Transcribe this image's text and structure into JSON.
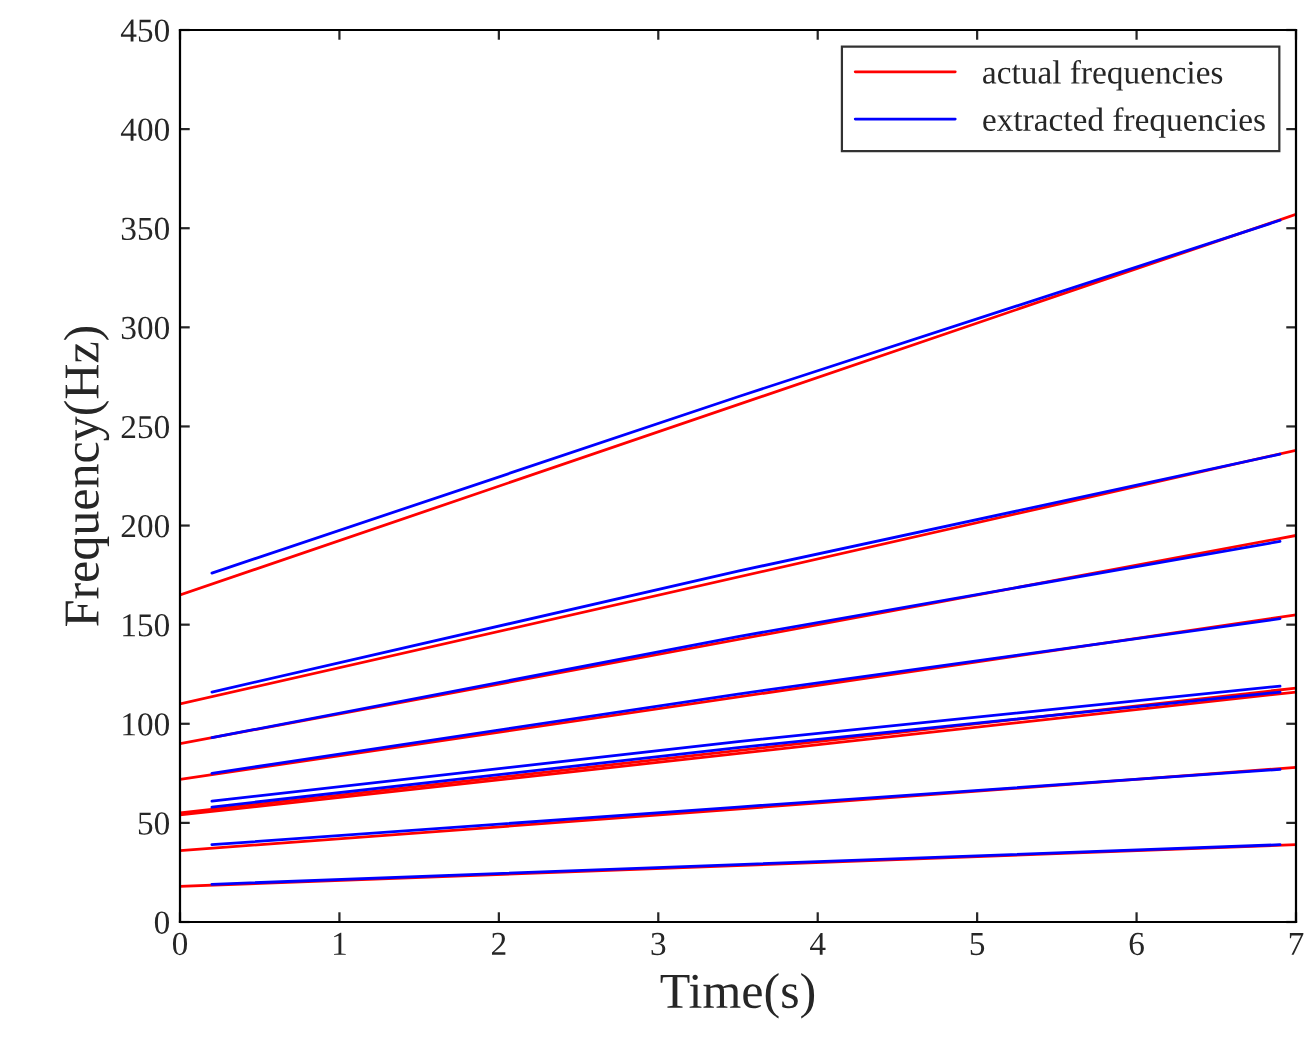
{
  "chart_data": {
    "type": "line",
    "xlabel": "Time(s)",
    "ylabel": "Frequency(Hz)",
    "xlim": [
      0,
      7
    ],
    "ylim": [
      0,
      450
    ],
    "xticks": [
      0,
      1,
      2,
      3,
      4,
      5,
      6,
      7
    ],
    "yticks": [
      0,
      50,
      100,
      150,
      200,
      250,
      300,
      350,
      400,
      450
    ],
    "grid": false,
    "legend": "top right",
    "marker": "none",
    "line_style": "solid",
    "series": [
      {
        "name": "actual frequencies",
        "color": "#ff0000",
        "x": [
          0,
          7
        ],
        "values": [
          165,
          357
        ]
      },
      {
        "color": "#ff0000",
        "x": [
          0,
          7
        ],
        "values": [
          110,
          238
        ]
      },
      {
        "color": "#ff0000",
        "x": [
          0,
          7
        ],
        "values": [
          90,
          195
        ]
      },
      {
        "color": "#ff0000",
        "x": [
          0,
          7
        ],
        "values": [
          72,
          155
        ]
      },
      {
        "color": "#ff0000",
        "x": [
          0,
          7
        ],
        "values": [
          55,
          118
        ]
      },
      {
        "color": "#ff0000",
        "x": [
          0,
          7
        ],
        "values": [
          54,
          116
        ]
      },
      {
        "color": "#ff0000",
        "x": [
          0,
          7
        ],
        "values": [
          36,
          78
        ]
      },
      {
        "color": "#ff0000",
        "x": [
          0,
          7
        ],
        "values": [
          18,
          39
        ]
      },
      {
        "name": "extracted frequencies",
        "color": "#0000ff",
        "x": [
          0.2,
          3.5,
          6.9
        ],
        "values": [
          176,
          265,
          354
        ]
      },
      {
        "color": "#0000ff",
        "x": [
          0.2,
          3.5,
          6.9
        ],
        "values": [
          116,
          177,
          236
        ]
      },
      {
        "color": "#0000ff",
        "x": [
          0.2,
          3.5,
          6.9
        ],
        "values": [
          93,
          144,
          192
        ]
      },
      {
        "color": "#0000ff",
        "x": [
          0.2,
          3.5,
          6.9
        ],
        "values": [
          75,
          115,
          153
        ]
      },
      {
        "color": "#0000ff",
        "x": [
          0.2,
          3.5,
          6.9
        ],
        "values": [
          61,
          91,
          119
        ]
      },
      {
        "color": "#0000ff",
        "x": [
          0.2,
          3.5,
          6.9
        ],
        "values": [
          58,
          88,
          116
        ]
      },
      {
        "color": "#0000ff",
        "x": [
          0.2,
          3.5,
          6.9
        ],
        "values": [
          39,
          58,
          77
        ]
      },
      {
        "color": "#0000ff",
        "x": [
          0.2,
          3.5,
          6.9
        ],
        "values": [
          19,
          29,
          39
        ]
      }
    ]
  }
}
